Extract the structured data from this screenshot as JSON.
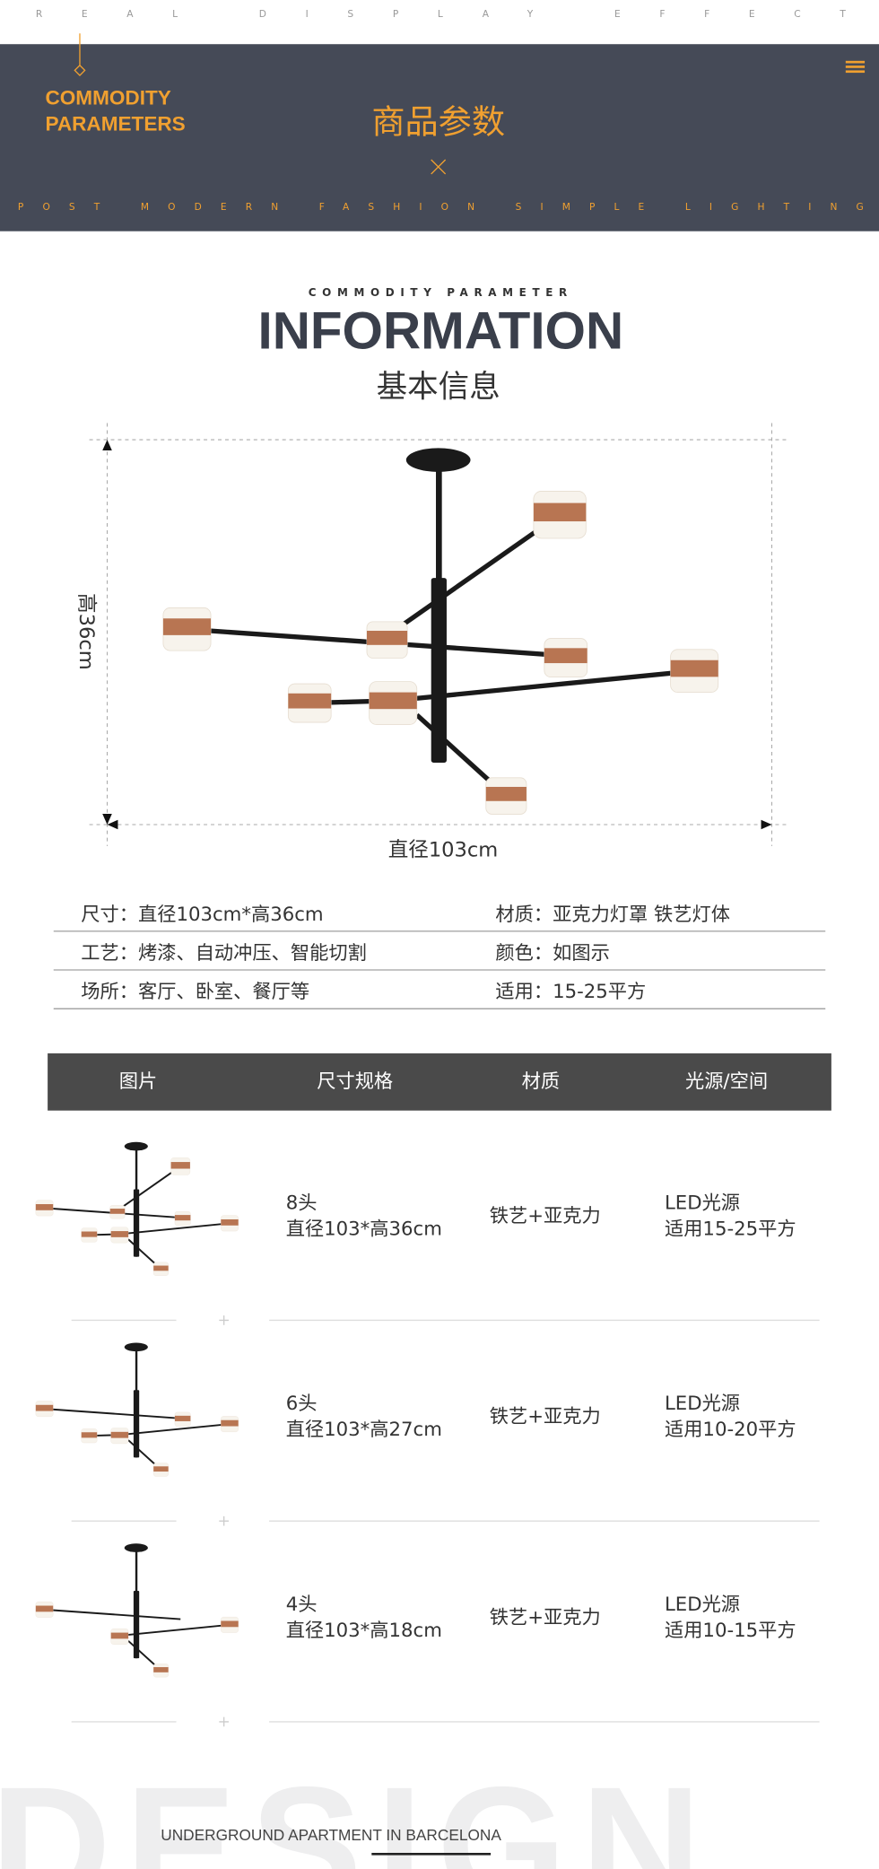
{
  "top_banner": "REAL DISPLAY EFFECT",
  "header": {
    "title_en": [
      "COMMODITY",
      "PARAMETERS"
    ],
    "title_cn": "商品参数",
    "tagline": "POST MODERN FASHION SIMPLE LIGHTING"
  },
  "info": {
    "kicker": "COMMODITY PARAMETER",
    "title": "INFORMATION",
    "subtitle": "基本信息",
    "height_label": "高36cm",
    "width_label": "直径103cm"
  },
  "specs": [
    [
      "尺寸：直径103cm*高36cm",
      "材质：亚克力灯罩  铁艺灯体"
    ],
    [
      "工艺：烤漆、自动冲压、智能切割",
      "颜色：如图示"
    ],
    [
      "场所：客厅、卧室、餐厅等",
      "适用：15-25平方"
    ]
  ],
  "table": {
    "headers": [
      "图片",
      "尺寸规格",
      "材质",
      "光源/空间"
    ],
    "rows": [
      {
        "spec": [
          "8头",
          "直径103*高36cm"
        ],
        "material": "铁艺+亚克力",
        "light": [
          "LED光源",
          "适用15-25平方"
        ]
      },
      {
        "spec": [
          "6头",
          "直径103*高27cm"
        ],
        "material": "铁艺+亚克力",
        "light": [
          "LED光源",
          "适用10-20平方"
        ]
      },
      {
        "spec": [
          "4头",
          "直径103*高18cm"
        ],
        "material": "铁艺+亚克力",
        "light": [
          "LED光源",
          "适用10-15平方"
        ]
      }
    ]
  },
  "footer": {
    "watermark": "DESIGN",
    "caption": "UNDERGROUND APARTMENT IN BARCELONA"
  }
}
